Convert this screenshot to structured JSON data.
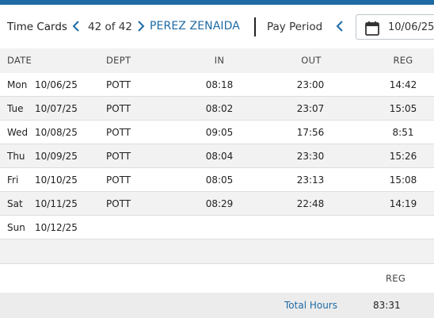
{
  "header": {
    "title": "Time Cards",
    "record_count": "42 of 42",
    "employee_name": "PEREZ ZENAIDA",
    "pay_period_label": "Pay Period",
    "date_value": "10/06/25"
  },
  "columns": {
    "date": "DATE",
    "dept": "DEPT",
    "in": "IN",
    "out": "OUT",
    "reg": "REG"
  },
  "rows": [
    {
      "day": "Mon",
      "date": "10/06/25",
      "dept": "POTT",
      "in": "08:18",
      "out": "23:00",
      "reg": "14:42"
    },
    {
      "day": "Tue",
      "date": "10/07/25",
      "dept": "POTT",
      "in": "08:02",
      "out": "23:07",
      "reg": "15:05"
    },
    {
      "day": "Wed",
      "date": "10/08/25",
      "dept": "POTT",
      "in": "09:05",
      "out": "17:56",
      "reg": "8:51"
    },
    {
      "day": "Thu",
      "date": "10/09/25",
      "dept": "POTT",
      "in": "08:04",
      "out": "23:30",
      "reg": "15:26"
    },
    {
      "day": "Fri",
      "date": "10/10/25",
      "dept": "POTT",
      "in": "08:05",
      "out": "23:13",
      "reg": "15:08"
    },
    {
      "day": "Sat",
      "date": "10/11/25",
      "dept": "POTT",
      "in": "08:29",
      "out": "22:48",
      "reg": "14:19"
    },
    {
      "day": "Sun",
      "date": "10/12/25",
      "dept": "",
      "in": "",
      "out": "",
      "reg": ""
    }
  ],
  "summary": {
    "reg_header": "REG",
    "total_label": "Total Hours",
    "total_reg": "83:31"
  },
  "icons": {
    "prev": "chevron-left-icon",
    "next": "chevron-right-icon",
    "calendar": "calendar-icon"
  },
  "colors": {
    "accent": "#1e6aa3",
    "row_alt": "#f2f2f2"
  }
}
